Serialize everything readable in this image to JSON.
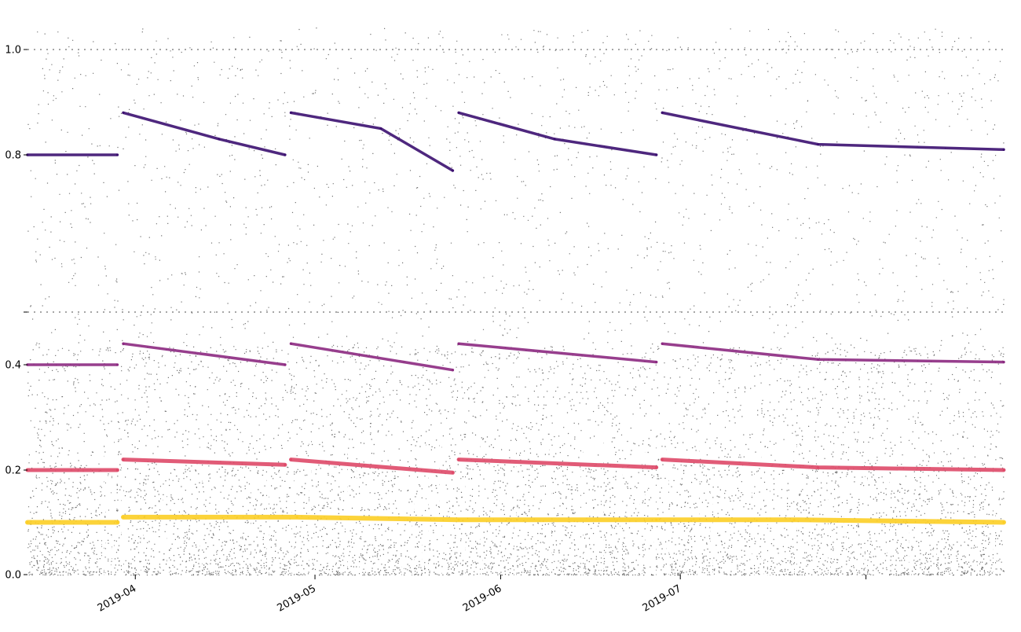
{
  "chart_data": {
    "type": "scatter",
    "title": "",
    "xlabel": "",
    "ylabel": "",
    "xlim": [
      "2019-03-14",
      "2019-08-24"
    ],
    "ylim": [
      0.0,
      1.0
    ],
    "y_ticks": [
      {
        "value": 0.0,
        "label": "0.0"
      },
      {
        "value": 0.2,
        "label": "0.2"
      },
      {
        "value": 0.4,
        "label": "0.4"
      },
      {
        "value": 0.8,
        "label": "0.8"
      },
      {
        "value": 1.0,
        "label": "1.0"
      }
    ],
    "y_ticks_unlabeled": [
      0.5
    ],
    "x_ticks": [
      {
        "value": "2019-04-01",
        "label": "2019-04"
      },
      {
        "value": "2019-05-01",
        "label": "2019-05"
      },
      {
        "value": "2019-06-01",
        "label": "2019-06"
      },
      {
        "value": "2019-07-01",
        "label": "2019-07"
      },
      {
        "value": "2019-08-01",
        "label": ""
      }
    ],
    "grid": false,
    "legend": "none",
    "colormap": "inferno",
    "colors": {
      "background_points": "#000000",
      "band_low": "#3b0f70",
      "band_mid": "#8c2981",
      "band_high": "#de4968",
      "band_orange": "#f1731d",
      "band_yellow": "#fcce25"
    },
    "series": [
      {
        "color_value": 0.92,
        "points": [
          [
            "2019-03-14",
            0.1
          ],
          [
            "2019-03-29",
            0.1
          ],
          [
            "2019-03-30",
            0.11
          ],
          [
            "2019-04-28",
            0.11
          ],
          [
            "2019-05-25",
            0.105
          ],
          [
            "2019-06-27",
            0.105
          ],
          [
            "2019-07-20",
            0.105
          ],
          [
            "2019-08-24",
            0.1
          ]
        ]
      },
      {
        "color_value": 0.6,
        "points": [
          [
            "2019-03-14",
            0.2
          ],
          [
            "2019-03-29",
            0.2
          ],
          [
            "2019-03-30",
            0.22
          ],
          [
            "2019-04-26",
            0.21
          ],
          [
            "2019-04-27",
            0.22
          ],
          [
            "2019-05-24",
            0.195
          ],
          [
            "2019-05-25",
            0.22
          ],
          [
            "2019-06-27",
            0.205
          ],
          [
            "2019-06-28",
            0.22
          ],
          [
            "2019-07-24",
            0.205
          ],
          [
            "2019-08-24",
            0.2
          ]
        ]
      },
      {
        "color_value": 0.35,
        "points": [
          [
            "2019-03-14",
            0.4
          ],
          [
            "2019-03-29",
            0.4
          ],
          [
            "2019-03-30",
            0.44
          ],
          [
            "2019-04-26",
            0.4
          ],
          [
            "2019-04-27",
            0.44
          ],
          [
            "2019-05-24",
            0.39
          ],
          [
            "2019-05-25",
            0.44
          ],
          [
            "2019-06-27",
            0.405
          ],
          [
            "2019-06-28",
            0.44
          ],
          [
            "2019-07-24",
            0.41
          ],
          [
            "2019-08-24",
            0.405
          ]
        ]
      },
      {
        "color_value": 0.15,
        "points": [
          [
            "2019-03-14",
            0.8
          ],
          [
            "2019-03-29",
            0.8
          ],
          [
            "2019-03-30",
            0.88
          ],
          [
            "2019-04-15",
            0.83
          ],
          [
            "2019-04-26",
            0.8
          ],
          [
            "2019-04-27",
            0.88
          ],
          [
            "2019-05-12",
            0.85
          ],
          [
            "2019-05-24",
            0.77
          ],
          [
            "2019-05-25",
            0.88
          ],
          [
            "2019-06-10",
            0.83
          ],
          [
            "2019-06-27",
            0.8
          ],
          [
            "2019-06-28",
            0.88
          ],
          [
            "2019-07-24",
            0.82
          ],
          [
            "2019-08-24",
            0.81
          ]
        ]
      }
    ]
  }
}
